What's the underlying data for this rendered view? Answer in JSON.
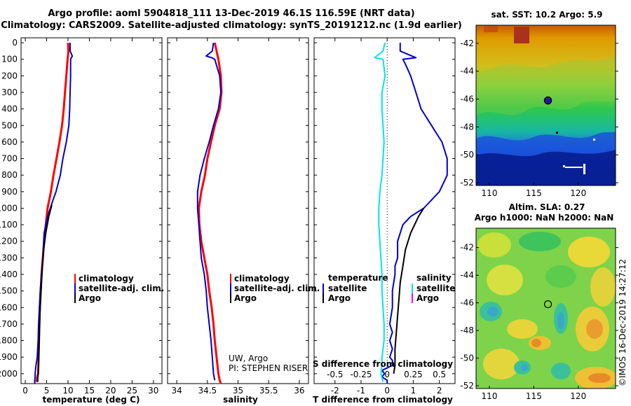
{
  "title_line1": "Argo profile: aoml 5904818_111 13-Dec-2019 46.1S 116.59E (NRT data)",
  "title_line2": "Climatology: CARS2009. Satellite-adjusted climatology: synTS_20191212.nc (1.9d earlier)",
  "colors": {
    "climatology": "#ff0000",
    "satellite": "#0000cc",
    "argo": "#000000",
    "s_satellite": "#00e5e5",
    "s_argo": "#ff00ff"
  },
  "depth_ticks": [
    "0",
    "100",
    "200",
    "300",
    "400",
    "500",
    "600",
    "700",
    "800",
    "900",
    "1000",
    "1100",
    "1200",
    "1300",
    "1400",
    "1500",
    "1600",
    "1700",
    "1800",
    "1900",
    "2000"
  ],
  "depth_range": [
    -30,
    2060
  ],
  "chart_data": [
    {
      "type": "line",
      "xlabel": "temperature (deg C)",
      "xlim": [
        -1,
        32
      ],
      "xticks": [
        "0",
        "5",
        "10",
        "15",
        "20",
        "25",
        "30"
      ],
      "legend": [
        "climatology",
        "satellite-adj. clim.",
        "Argo"
      ],
      "series": [
        {
          "name": "climatology",
          "color": "climatology",
          "x": [
            10.0,
            10.1,
            9.9,
            9.6,
            9.3,
            9.0,
            8.6,
            8.0,
            7.3,
            6.6,
            6.0,
            5.2,
            4.8,
            4.4,
            4.1,
            3.8,
            3.6,
            3.4,
            3.3,
            3.2,
            3.1,
            3.0,
            2.8,
            2.7,
            2.6
          ],
          "y": [
            0,
            50,
            100,
            200,
            300,
            400,
            500,
            600,
            700,
            800,
            900,
            1000,
            1100,
            1200,
            1300,
            1400,
            1500,
            1600,
            1700,
            1800,
            1900,
            2000,
            2020,
            2040,
            2050
          ]
        },
        {
          "name": "satellite-adj. clim.",
          "color": "satellite",
          "x": [
            10.5,
            10.5,
            11.0,
            10.6,
            10.6,
            10.5,
            10.4,
            10.2,
            9.6,
            8.8,
            8.2,
            7.2,
            6.5,
            5.2,
            4.4,
            4.1,
            3.8,
            3.5,
            3.3,
            3.1,
            3.0,
            2.8,
            2.5,
            2.3,
            2.3,
            2.2,
            2.2
          ],
          "y": [
            0,
            50,
            80,
            100,
            200,
            300,
            400,
            500,
            600,
            700,
            800,
            900,
            950,
            1050,
            1150,
            1300,
            1400,
            1500,
            1600,
            1700,
            1800,
            1900,
            1950,
            2000,
            2020,
            2040,
            2060
          ]
        },
        {
          "name": "Argo",
          "color": "argo",
          "x": [
            6.2,
            5.5,
            4.8,
            4.3,
            4.0,
            3.8,
            3.6,
            3.4,
            3.3,
            3.2,
            3.1,
            3.0,
            2.9,
            2.9
          ],
          "y": [
            980,
            1050,
            1150,
            1250,
            1350,
            1450,
            1550,
            1650,
            1750,
            1850,
            1950,
            2000,
            2030,
            2050
          ]
        }
      ]
    },
    {
      "type": "line",
      "xlabel": "salinity",
      "xlim": [
        33.85,
        36.15
      ],
      "xticks": [
        "34",
        "34.5",
        "35",
        "35.5",
        "36"
      ],
      "legend": [
        "climatology",
        "satellite-adj. clim.",
        "Argo"
      ],
      "annotation": [
        "UW, Argo",
        "PI: STEPHEN RISER"
      ],
      "series": [
        {
          "name": "climatology",
          "color": "climatology",
          "x": [
            34.62,
            34.65,
            34.68,
            34.72,
            34.73,
            34.7,
            34.62,
            34.56,
            34.5,
            34.46,
            34.4,
            34.36,
            34.37,
            34.4,
            34.45,
            34.5,
            34.53,
            34.57,
            34.6,
            34.62,
            34.65,
            34.68,
            34.7,
            34.72
          ],
          "y": [
            0,
            50,
            100,
            200,
            300,
            400,
            500,
            600,
            700,
            800,
            900,
            1000,
            1100,
            1200,
            1300,
            1400,
            1500,
            1600,
            1700,
            1800,
            1900,
            2000,
            2040,
            2060
          ]
        },
        {
          "name": "satellite-adj. clim.",
          "color": "satellite",
          "x": [
            34.6,
            34.58,
            34.48,
            34.57,
            34.62,
            34.7,
            34.72,
            34.68,
            34.6,
            34.53,
            34.45,
            34.38,
            34.34,
            34.34,
            34.36,
            34.38,
            34.4,
            34.45,
            34.48,
            34.5,
            34.53,
            34.56,
            34.58,
            34.6,
            34.62
          ],
          "y": [
            0,
            50,
            80,
            90,
            100,
            200,
            300,
            400,
            500,
            600,
            700,
            800,
            900,
            1000,
            1100,
            1200,
            1300,
            1400,
            1500,
            1600,
            1700,
            1800,
            1900,
            2000,
            2040
          ]
        },
        {
          "name": "Argo",
          "color": "argo",
          "x": [],
          "y": []
        }
      ]
    },
    {
      "type": "line",
      "xlabel": "T difference from climatology",
      "xlabel2": "S difference from climatology",
      "xlim": [
        -2.8,
        2.6
      ],
      "xticks": [
        "-2",
        "-1",
        "0",
        "1",
        "2"
      ],
      "xlim2": [
        -0.7,
        0.65
      ],
      "xticks2": [
        "-0.5",
        "-0.25",
        "0",
        "0.25",
        "0.5"
      ],
      "legend_left": {
        "heading": "temperature",
        "items": [
          "satellite",
          "Argo"
        ]
      },
      "legend_right": {
        "heading": "salinity",
        "items": [
          "satellite",
          "Argo"
        ]
      },
      "series": [
        {
          "name": "temperature satellite",
          "color": "satellite",
          "axis": "T",
          "x": [
            0.5,
            0.5,
            1.1,
            0.6,
            0.7,
            0.9,
            1.1,
            1.3,
            1.7,
            2.1,
            2.3,
            2.3,
            2.0,
            1.4,
            0.9,
            0.6,
            0.4,
            0.4,
            0.3,
            0.3,
            0.2,
            0.2,
            0.1,
            0.2,
            0.1,
            0.2,
            0.1,
            0.2,
            0.2,
            -0.2,
            -0.1,
            -0.2,
            0.0,
            0.0
          ],
          "y": [
            0,
            50,
            90,
            100,
            130,
            200,
            300,
            400,
            500,
            600,
            700,
            800,
            900,
            1000,
            1050,
            1100,
            1200,
            1300,
            1350,
            1400,
            1500,
            1600,
            1700,
            1750,
            1800,
            1850,
            1900,
            1920,
            1950,
            1980,
            2000,
            2020,
            2040,
            2060
          ]
        },
        {
          "name": "temperature Argo",
          "color": "argo",
          "axis": "T",
          "x": [
            1.4,
            1.2,
            0.9,
            0.7,
            0.6,
            0.5,
            0.45,
            0.4,
            0.35,
            0.3,
            0.3,
            0.25
          ],
          "y": [
            1000,
            1050,
            1150,
            1250,
            1350,
            1450,
            1550,
            1650,
            1750,
            1850,
            1950,
            2000
          ]
        },
        {
          "name": "salinity satellite",
          "color": "s_satellite",
          "axis": "S",
          "x": [
            -0.02,
            -0.04,
            -0.12,
            -0.04,
            -0.02,
            -0.05,
            -0.05,
            -0.04,
            -0.03,
            -0.04,
            -0.05,
            -0.07,
            -0.08,
            -0.08,
            -0.07,
            -0.06,
            -0.05,
            -0.05,
            -0.04,
            -0.03,
            -0.03,
            -0.04,
            -0.05,
            -0.05,
            -0.06,
            -0.04
          ],
          "y": [
            0,
            50,
            90,
            100,
            200,
            300,
            400,
            500,
            600,
            700,
            800,
            900,
            1000,
            1100,
            1200,
            1300,
            1400,
            1500,
            1600,
            1700,
            1800,
            1850,
            1900,
            1950,
            2000,
            2050
          ]
        }
      ]
    }
  ],
  "map1": {
    "title": "sat. SST: 10.2 Argo: 5.9",
    "yticks": [
      "-42",
      "-44",
      "-46",
      "-48",
      "-50",
      "-52"
    ],
    "xticks": [
      "110",
      "115",
      "120"
    ],
    "lon_range": [
      108.5,
      124.2
    ],
    "lat_range": [
      -52.2,
      -40.7
    ],
    "argo_position": {
      "lon": 116.59,
      "lat": -46.1
    }
  },
  "map2": {
    "title_line1": "Altim. SLA: 0.27",
    "title_line2": "Argo h1000: NaN h2000: NaN",
    "yticks": [
      "-42",
      "-44",
      "-46",
      "-48",
      "-50",
      "-52"
    ],
    "xticks": [
      "110",
      "115",
      "120"
    ],
    "lon_range": [
      108.5,
      124.2
    ],
    "lat_range": [
      -52.2,
      -40.6
    ],
    "argo_position": {
      "lon": 116.59,
      "lat": -46.1
    }
  },
  "credit": "©IMOS 16-Dec-2019 14:27:12"
}
